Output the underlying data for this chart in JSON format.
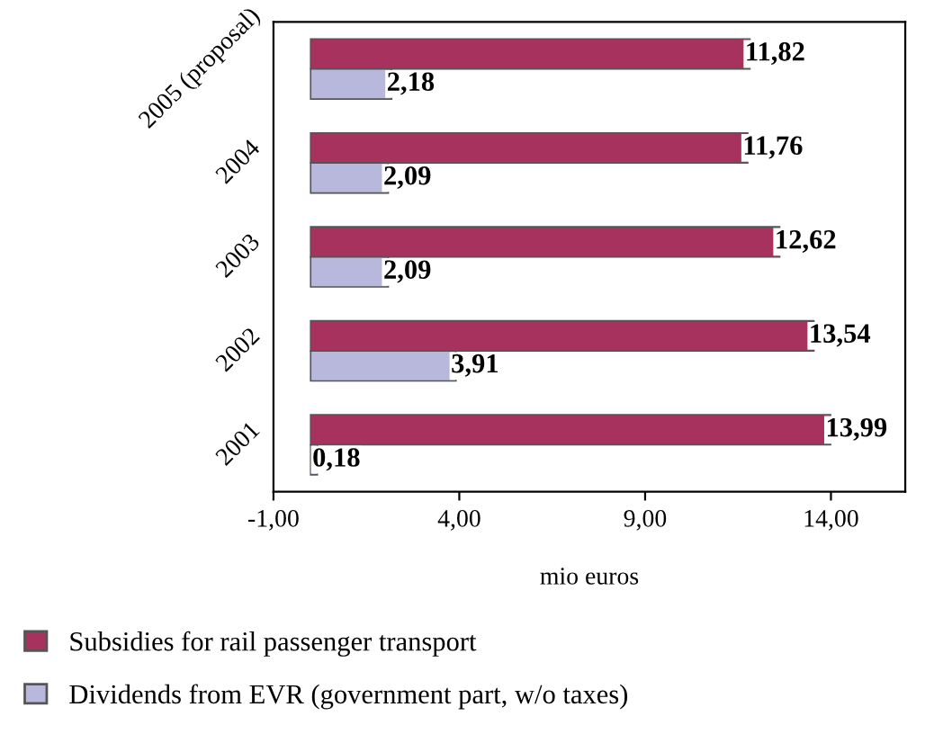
{
  "chart_data": {
    "type": "bar",
    "orientation": "horizontal",
    "xlabel": "mio euros",
    "categories": [
      "2005 (proposal)",
      "2004",
      "2003",
      "2002",
      "2001"
    ],
    "series": [
      {
        "name": "Subsidies for rail passenger transport",
        "color": "#a8325e",
        "values": [
          11.82,
          11.76,
          12.62,
          13.54,
          13.99
        ],
        "value_labels": [
          "11,82",
          "11,76",
          "12,62",
          "13,54",
          "13,99"
        ]
      },
      {
        "name": "Dividends from EVR (government part, w/o taxes)",
        "color": "#b8b8dc",
        "values": [
          2.18,
          2.09,
          2.09,
          3.91,
          0.18
        ],
        "value_labels": [
          "2,18",
          "2,09",
          "2,09",
          "3,91",
          "0,18"
        ]
      }
    ],
    "xlim": [
      -1,
      16
    ],
    "xticks": [
      {
        "value": -1,
        "label": "-1,00"
      },
      {
        "value": 4,
        "label": "4,00"
      },
      {
        "value": 9,
        "label": "9,00"
      },
      {
        "value": 14,
        "label": "14,00"
      }
    ],
    "grid": false,
    "legend": "bottom"
  }
}
